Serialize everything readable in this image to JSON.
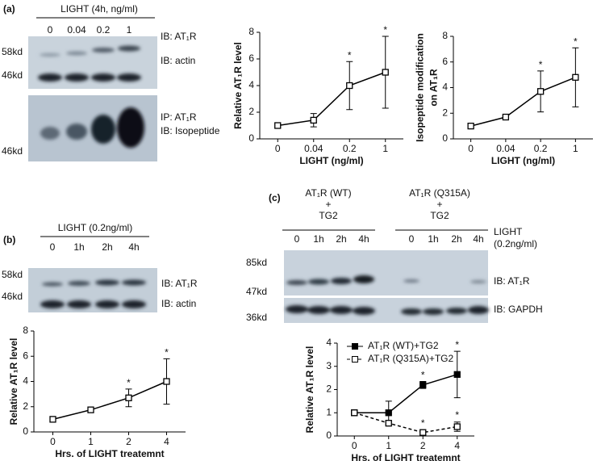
{
  "panels": {
    "a": "(a)",
    "b": "(b)",
    "c": "(c)"
  },
  "blot_a": {
    "treatment": "LIGHT (4h, ng/ml)",
    "lanes": [
      "0",
      "0.04",
      "0.2",
      "1"
    ],
    "markers": [
      "58kd",
      "46kd",
      "46kd"
    ],
    "labels": [
      "IB: AT₁R",
      "IB: actin",
      "IP: AT₁R",
      "IB: Isopeptide"
    ]
  },
  "blot_b": {
    "treatment": "LIGHT (0.2ng/ml)",
    "lanes": [
      "0",
      "1h",
      "2h",
      "4h"
    ],
    "markers": [
      "58kd",
      "46kd"
    ],
    "labels": [
      "IB: AT₁R",
      "IB: actin"
    ]
  },
  "blot_c": {
    "groups": [
      [
        "AT₁R (WT)",
        "+",
        "TG2"
      ],
      [
        "AT₁R (Q315A)",
        "+",
        "TG2"
      ]
    ],
    "lanes": [
      "0",
      "1h",
      "2h",
      "4h",
      "0",
      "1h",
      "2h",
      "4h"
    ],
    "treatment": [
      "LIGHT",
      "(0.2ng/ml)"
    ],
    "markers": [
      "85kd",
      "47kd",
      "36kd"
    ],
    "labels": [
      "IB: AT₁R",
      "IB: GAPDH"
    ]
  },
  "chart_data": [
    {
      "type": "line",
      "ylabel": [
        "Relative AT₁R level"
      ],
      "xlabel": "LIGHT (ng/ml)",
      "categories": [
        "0",
        "0.04",
        "0.2",
        "1"
      ],
      "ylim": [
        0,
        8
      ],
      "yticks": [
        0,
        2,
        4,
        6,
        8
      ],
      "series": [
        {
          "color": "#000000",
          "marker": "open-square",
          "values": [
            1,
            1.4,
            4,
            5
          ],
          "errors": [
            0.1,
            0.5,
            1.8,
            2.7
          ],
          "significance": [
            null,
            null,
            "*",
            "*"
          ]
        }
      ]
    },
    {
      "type": "line",
      "ylabel": [
        "Isopeptide modification",
        "on AT₁R"
      ],
      "xlabel": "LIGHT (ng/ml)",
      "categories": [
        "0",
        "0.04",
        "0.2",
        "1"
      ],
      "ylim": [
        0,
        8
      ],
      "yticks": [
        0,
        2,
        4,
        6,
        8
      ],
      "series": [
        {
          "color": "#000000",
          "marker": "open-square",
          "values": [
            1,
            1.7,
            3.7,
            4.8
          ],
          "errors": [
            0.1,
            0.1,
            1.6,
            2.3
          ],
          "significance": [
            null,
            null,
            "*",
            "*"
          ]
        }
      ]
    },
    {
      "type": "line",
      "ylabel": [
        "Relative AT₁R level"
      ],
      "xlabel": "Hrs. of LIGHT treatemnt",
      "categories": [
        "0",
        "1",
        "2",
        "4"
      ],
      "ylim": [
        0,
        8
      ],
      "yticks": [
        0,
        2,
        4,
        6,
        8
      ],
      "series": [
        {
          "color": "#000000",
          "marker": "open-square",
          "values": [
            1,
            1.75,
            2.7,
            4
          ],
          "errors": [
            0.1,
            0.1,
            0.7,
            1.8
          ],
          "significance": [
            null,
            null,
            "*",
            "*"
          ]
        }
      ]
    },
    {
      "type": "line",
      "ylabel": [
        "Relative AT₁R level"
      ],
      "xlabel": "Hrs. of LIGHT treatemnt",
      "categories": [
        "0",
        "1",
        "2",
        "4"
      ],
      "ylim": [
        0,
        4
      ],
      "yticks": [
        0,
        1,
        2,
        3,
        4
      ],
      "legend": "top-left",
      "series": [
        {
          "name": "AT₁R (WT)+TG2",
          "color": "#000000",
          "marker": "filled-square",
          "dash": false,
          "values": [
            1,
            1,
            2.2,
            2.65
          ],
          "errors": [
            0,
            0.5,
            0.15,
            1
          ],
          "significance": [
            null,
            null,
            "*",
            "*"
          ]
        },
        {
          "name": "AT₁R (Q315A)+TG2",
          "color": "#000000",
          "marker": "open-square",
          "dash": true,
          "values": [
            1,
            0.55,
            0.15,
            0.4
          ],
          "errors": [
            0,
            0.05,
            0.1,
            0.2
          ],
          "significance": [
            null,
            null,
            "*",
            "*"
          ]
        }
      ]
    }
  ]
}
